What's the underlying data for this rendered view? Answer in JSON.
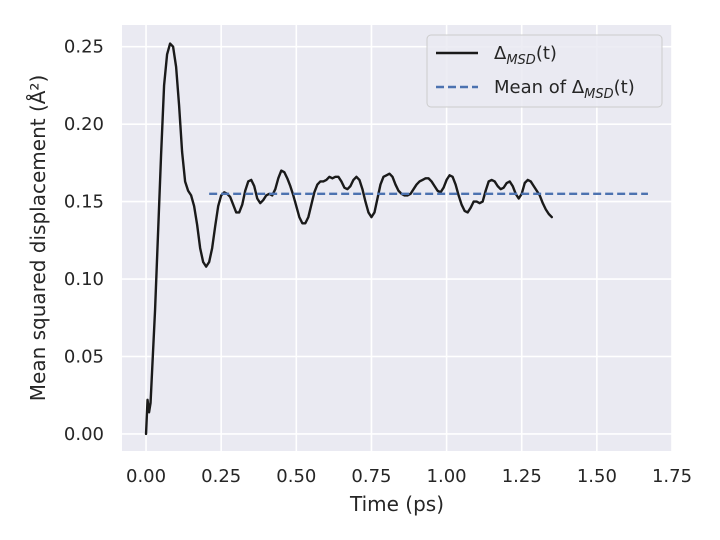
{
  "chart_data": {
    "type": "line",
    "xlabel": "Time (ps)",
    "ylabel": "Mean squared displacement (Å²)",
    "xlim": [
      -0.08,
      1.75
    ],
    "ylim": [
      -0.011,
      0.264
    ],
    "xticks": [
      0.0,
      0.25,
      0.5,
      0.75,
      1.0,
      1.25,
      1.5,
      1.75
    ],
    "xtick_labels": [
      "0.00",
      "0.25",
      "0.50",
      "0.75",
      "1.00",
      "1.25",
      "1.50",
      "1.75"
    ],
    "yticks": [
      0.0,
      0.05,
      0.1,
      0.15,
      0.2,
      0.25
    ],
    "ytick_labels": [
      "0.00",
      "0.05",
      "0.10",
      "0.15",
      "0.20",
      "0.25"
    ],
    "grid": true,
    "legend_position": "top-right",
    "background": "#EAEAF2",
    "series": [
      {
        "name": "Δ_MSD(t)",
        "style": "solid",
        "color": "#1a1a1a",
        "points": [
          [
            0.0,
            0.0
          ],
          [
            0.005,
            0.022
          ],
          [
            0.01,
            0.014
          ],
          [
            0.015,
            0.02
          ],
          [
            0.02,
            0.04
          ],
          [
            0.03,
            0.08
          ],
          [
            0.04,
            0.13
          ],
          [
            0.05,
            0.18
          ],
          [
            0.06,
            0.225
          ],
          [
            0.07,
            0.245
          ],
          [
            0.08,
            0.252
          ],
          [
            0.09,
            0.25
          ],
          [
            0.1,
            0.237
          ],
          [
            0.11,
            0.212
          ],
          [
            0.12,
            0.182
          ],
          [
            0.13,
            0.163
          ],
          [
            0.14,
            0.157
          ],
          [
            0.15,
            0.154
          ],
          [
            0.16,
            0.147
          ],
          [
            0.17,
            0.135
          ],
          [
            0.18,
            0.12
          ],
          [
            0.19,
            0.111
          ],
          [
            0.2,
            0.108
          ],
          [
            0.21,
            0.111
          ],
          [
            0.22,
            0.12
          ],
          [
            0.23,
            0.134
          ],
          [
            0.24,
            0.147
          ],
          [
            0.25,
            0.154
          ],
          [
            0.26,
            0.156
          ],
          [
            0.27,
            0.155
          ],
          [
            0.28,
            0.153
          ],
          [
            0.29,
            0.148
          ],
          [
            0.3,
            0.143
          ],
          [
            0.31,
            0.143
          ],
          [
            0.32,
            0.148
          ],
          [
            0.33,
            0.157
          ],
          [
            0.34,
            0.163
          ],
          [
            0.35,
            0.164
          ],
          [
            0.36,
            0.16
          ],
          [
            0.37,
            0.152
          ],
          [
            0.38,
            0.149
          ],
          [
            0.39,
            0.151
          ],
          [
            0.4,
            0.154
          ],
          [
            0.41,
            0.155
          ],
          [
            0.42,
            0.154
          ],
          [
            0.43,
            0.158
          ],
          [
            0.44,
            0.165
          ],
          [
            0.45,
            0.17
          ],
          [
            0.46,
            0.169
          ],
          [
            0.47,
            0.165
          ],
          [
            0.48,
            0.16
          ],
          [
            0.49,
            0.154
          ],
          [
            0.5,
            0.147
          ],
          [
            0.51,
            0.14
          ],
          [
            0.52,
            0.136
          ],
          [
            0.53,
            0.136
          ],
          [
            0.54,
            0.14
          ],
          [
            0.55,
            0.148
          ],
          [
            0.56,
            0.156
          ],
          [
            0.57,
            0.161
          ],
          [
            0.58,
            0.163
          ],
          [
            0.59,
            0.163
          ],
          [
            0.6,
            0.164
          ],
          [
            0.61,
            0.166
          ],
          [
            0.62,
            0.165
          ],
          [
            0.63,
            0.166
          ],
          [
            0.64,
            0.166
          ],
          [
            0.65,
            0.163
          ],
          [
            0.66,
            0.159
          ],
          [
            0.67,
            0.158
          ],
          [
            0.68,
            0.16
          ],
          [
            0.69,
            0.164
          ],
          [
            0.7,
            0.166
          ],
          [
            0.71,
            0.164
          ],
          [
            0.72,
            0.158
          ],
          [
            0.73,
            0.15
          ],
          [
            0.74,
            0.143
          ],
          [
            0.75,
            0.14
          ],
          [
            0.76,
            0.143
          ],
          [
            0.77,
            0.152
          ],
          [
            0.78,
            0.161
          ],
          [
            0.79,
            0.166
          ],
          [
            0.8,
            0.167
          ],
          [
            0.81,
            0.168
          ],
          [
            0.82,
            0.166
          ],
          [
            0.83,
            0.161
          ],
          [
            0.84,
            0.157
          ],
          [
            0.85,
            0.155
          ],
          [
            0.86,
            0.154
          ],
          [
            0.87,
            0.154
          ],
          [
            0.88,
            0.155
          ],
          [
            0.89,
            0.158
          ],
          [
            0.9,
            0.161
          ],
          [
            0.91,
            0.163
          ],
          [
            0.92,
            0.164
          ],
          [
            0.93,
            0.165
          ],
          [
            0.94,
            0.165
          ],
          [
            0.95,
            0.163
          ],
          [
            0.96,
            0.16
          ],
          [
            0.97,
            0.157
          ],
          [
            0.98,
            0.156
          ],
          [
            0.99,
            0.159
          ],
          [
            1.0,
            0.164
          ],
          [
            1.01,
            0.167
          ],
          [
            1.02,
            0.166
          ],
          [
            1.03,
            0.161
          ],
          [
            1.04,
            0.154
          ],
          [
            1.05,
            0.148
          ],
          [
            1.06,
            0.144
          ],
          [
            1.07,
            0.143
          ],
          [
            1.08,
            0.146
          ],
          [
            1.09,
            0.15
          ],
          [
            1.1,
            0.15
          ],
          [
            1.11,
            0.149
          ],
          [
            1.12,
            0.15
          ],
          [
            1.13,
            0.157
          ],
          [
            1.14,
            0.163
          ],
          [
            1.15,
            0.164
          ],
          [
            1.16,
            0.163
          ],
          [
            1.17,
            0.16
          ],
          [
            1.18,
            0.158
          ],
          [
            1.19,
            0.159
          ],
          [
            1.2,
            0.162
          ],
          [
            1.21,
            0.163
          ],
          [
            1.22,
            0.16
          ],
          [
            1.23,
            0.155
          ],
          [
            1.24,
            0.152
          ],
          [
            1.25,
            0.155
          ],
          [
            1.26,
            0.162
          ],
          [
            1.27,
            0.164
          ],
          [
            1.28,
            0.163
          ],
          [
            1.29,
            0.16
          ],
          [
            1.3,
            0.157
          ],
          [
            1.31,
            0.154
          ],
          [
            1.32,
            0.149
          ],
          [
            1.33,
            0.145
          ],
          [
            1.34,
            0.142
          ],
          [
            1.35,
            0.14
          ]
        ]
      },
      {
        "name": "Mean of Δ_MSD(t)",
        "style": "dashed",
        "color": "#4C72B0",
        "points": [
          [
            0.21,
            0.155
          ],
          [
            1.67,
            0.155
          ]
        ]
      }
    ],
    "legend": [
      {
        "base": "Δ",
        "sub": "MSD",
        "suffix": "(t)",
        "style": "solid",
        "color": "#1a1a1a"
      },
      {
        "prefix": "Mean of ",
        "base": "Δ",
        "sub": "MSD",
        "suffix": "(t)",
        "style": "dashed",
        "color": "#4C72B0"
      }
    ]
  }
}
